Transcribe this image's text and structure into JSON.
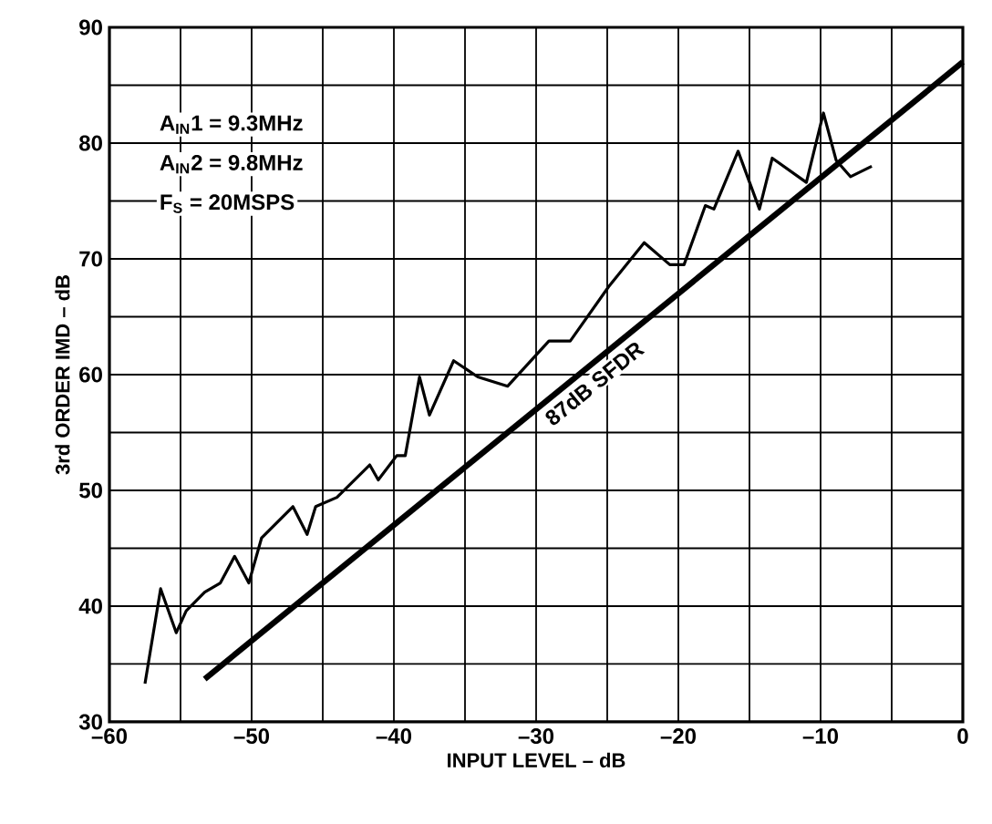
{
  "chart_data": {
    "type": "line",
    "xlabel": "INPUT LEVEL – dB",
    "ylabel": "3rd ORDER IMD – dB",
    "series": [
      {
        "color": "#000000",
        "x": [
          -57.5,
          -56.4,
          -55.3,
          -54.6,
          -53.3,
          -52.2,
          -51.2,
          -50.2,
          -49.3,
          -47.1,
          -46.1,
          -45.5,
          -44,
          -41.7,
          -41.1,
          -39.8,
          -39.2,
          -38.2,
          -37.5,
          -35.8,
          -34.1,
          -32,
          -29.1,
          -27.6,
          -24.9,
          -22.4,
          -20.6,
          -19.6,
          -18.1,
          -17.5,
          -15.8,
          -14.3,
          -13.4,
          -11,
          -9.8,
          -8.9,
          -7.9,
          -6.4
        ],
        "values": [
          33.3,
          41.5,
          37.7,
          39.6,
          41.2,
          42,
          44.3,
          42,
          45.9,
          48.6,
          46.2,
          48.6,
          49.4,
          52.2,
          50.9,
          53,
          53,
          59.8,
          56.5,
          61.2,
          59.8,
          59,
          62.9,
          62.9,
          67.6,
          71.4,
          69.5,
          69.5,
          74.6,
          74.3,
          79.3,
          74.3,
          78.7,
          76.6,
          82.6,
          78.5,
          77.1,
          78
        ]
      },
      {
        "name": "87dB SFDR",
        "color": "#000000",
        "x": [
          -53.3,
          0
        ],
        "values": [
          33.7,
          87
        ]
      }
    ],
    "xlim": [
      -60,
      0
    ],
    "ylim": [
      30,
      90
    ],
    "xticks": [
      {
        "value": -60,
        "label": "–60"
      },
      {
        "value": -55,
        "label": null
      },
      {
        "value": -50,
        "label": "–50"
      },
      {
        "value": -45,
        "label": null
      },
      {
        "value": -40,
        "label": "–40"
      },
      {
        "value": -35,
        "label": null
      },
      {
        "value": -30,
        "label": "–30"
      },
      {
        "value": -25,
        "label": null
      },
      {
        "value": -20,
        "label": "–20"
      },
      {
        "value": -15,
        "label": null
      },
      {
        "value": -10,
        "label": "–10"
      },
      {
        "value": -5,
        "label": null
      },
      0
    ],
    "yticks": [
      30,
      {
        "value": 35,
        "label": null
      },
      40,
      {
        "value": 45,
        "label": null
      },
      50,
      {
        "value": 55,
        "label": null
      },
      60,
      {
        "value": 65,
        "label": null
      },
      70,
      {
        "value": 75,
        "label": null
      },
      80,
      {
        "value": 85,
        "label": null
      },
      90
    ],
    "grid": true,
    "annotations": [
      "A$_{IN}$1 = 9.3MHz",
      "A$_{IN}$2 = 9.8MHz",
      "F$_{S}$ = 20MSPS"
    ]
  }
}
